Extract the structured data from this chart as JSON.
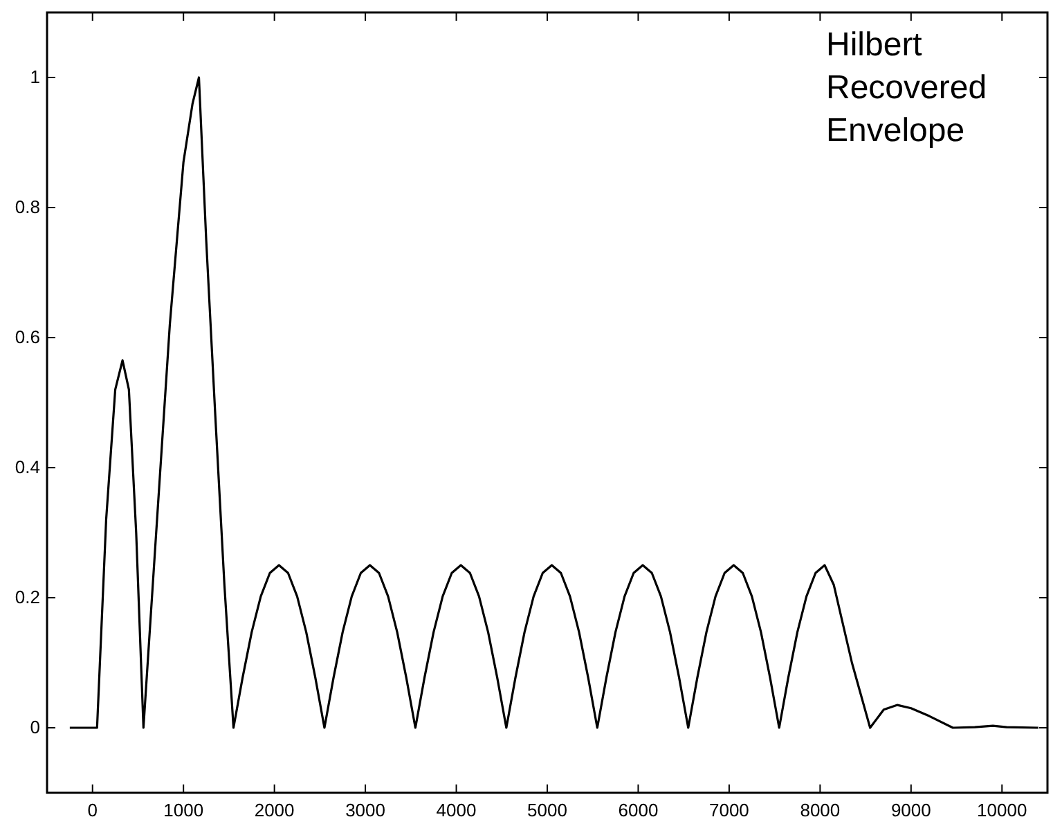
{
  "chart_data": {
    "type": "line",
    "annotations": [
      "Hilbert\nRecovered\nEnvelope"
    ],
    "x": [
      -250,
      50,
      150,
      250,
      330,
      400,
      480,
      560,
      700,
      850,
      1000,
      1100,
      1170,
      1250,
      1350,
      1450,
      1550,
      1650,
      1750,
      1850,
      1950,
      2050,
      2150,
      2250,
      2350,
      2450,
      2550,
      2650,
      2750,
      2850,
      2950,
      3050,
      3150,
      3250,
      3350,
      3450,
      3550,
      3650,
      3750,
      3850,
      3950,
      4050,
      4150,
      4250,
      4350,
      4450,
      4550,
      4650,
      4750,
      4850,
      4950,
      5050,
      5150,
      5250,
      5350,
      5450,
      5550,
      5650,
      5750,
      5850,
      5950,
      6050,
      6150,
      6250,
      6350,
      6450,
      6550,
      6650,
      6750,
      6850,
      6950,
      7050,
      7150,
      7250,
      7350,
      7450,
      7550,
      7650,
      7750,
      7850,
      7950,
      8050,
      8150,
      8250,
      8350,
      8450,
      8550,
      8700,
      8850,
      9000,
      9200,
      9460,
      9700,
      9900,
      10050,
      10400
    ],
    "series": [
      {
        "color": "#000000",
        "values": [
          0,
          0,
          0.32,
          0.52,
          0.565,
          0.52,
          0.3,
          0,
          0.3,
          0.62,
          0.87,
          0.96,
          1.0,
          0.75,
          0.48,
          0.22,
          0,
          0.077,
          0.147,
          0.202,
          0.238,
          0.25,
          0.238,
          0.202,
          0.147,
          0.077,
          0,
          0.077,
          0.147,
          0.202,
          0.238,
          0.25,
          0.238,
          0.202,
          0.147,
          0.077,
          0,
          0.077,
          0.147,
          0.202,
          0.238,
          0.25,
          0.238,
          0.202,
          0.147,
          0.077,
          0,
          0.077,
          0.147,
          0.202,
          0.238,
          0.25,
          0.238,
          0.202,
          0.147,
          0.077,
          0,
          0.077,
          0.147,
          0.202,
          0.238,
          0.25,
          0.238,
          0.202,
          0.147,
          0.077,
          0,
          0.077,
          0.147,
          0.202,
          0.238,
          0.25,
          0.238,
          0.202,
          0.147,
          0.077,
          0,
          0.077,
          0.147,
          0.202,
          0.238,
          0.25,
          0.22,
          0.16,
          0.1,
          0.05,
          0,
          0.028,
          0.035,
          0.03,
          0.018,
          0,
          0.001,
          0.003,
          0.001,
          0
        ]
      }
    ],
    "xlim": [
      -500,
      10500
    ],
    "ylim": [
      -0.1,
      1.1
    ],
    "xticks": [
      0,
      1000,
      2000,
      3000,
      4000,
      5000,
      6000,
      7000,
      8000,
      9000,
      10000
    ],
    "yticks": [
      0,
      0.2,
      0.4,
      0.6,
      0.8,
      1
    ]
  }
}
